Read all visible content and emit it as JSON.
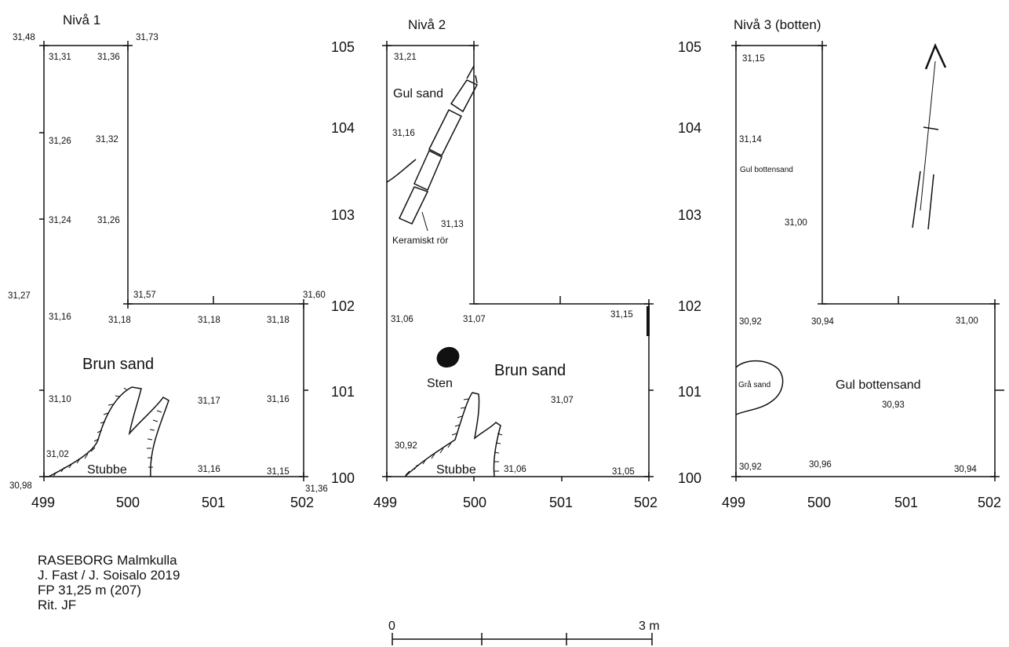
{
  "levels": [
    {
      "title": "Nivå 1",
      "x_ticks": [
        "499",
        "500",
        "501",
        "502"
      ],
      "y_ticks": [],
      "elevations": [
        "31,48",
        "31,31",
        "31,36",
        "31,73",
        "31,26",
        "31,32",
        "31,24",
        "31,26",
        "31,27",
        "31,57",
        "31,60",
        "31,16",
        "31,18",
        "31,18",
        "31,18",
        "31,10",
        "31,17",
        "31,16",
        "31,02",
        "30,98",
        "31,16",
        "31,15",
        "31,36"
      ],
      "labels": {
        "soil": "Brun sand",
        "stump": "Stubbe"
      }
    },
    {
      "title": "Nivå 2",
      "x_ticks": [
        "499",
        "500",
        "501",
        "502"
      ],
      "y_ticks": [
        "105",
        "104",
        "103",
        "102",
        "101",
        "100"
      ],
      "elevations": [
        "31,21",
        "31,16",
        "31,13",
        "31,06",
        "31,07",
        "31,15",
        "31,07",
        "30,92",
        "31,06",
        "31,05"
      ],
      "labels": {
        "yellow_sand": "Gul sand",
        "pipe": "Keramiskt rör",
        "stone": "Sten",
        "soil": "Brun sand",
        "stump": "Stubbe"
      }
    },
    {
      "title": "Nivå 3 (botten)",
      "x_ticks": [
        "499",
        "500",
        "501",
        "502"
      ],
      "y_ticks": [
        "105",
        "104",
        "103",
        "102",
        "101",
        "100"
      ],
      "elevations": [
        "31,15",
        "31,14",
        "31,00",
        "30,92",
        "30,94",
        "31,00",
        "30,93",
        "30,92",
        "30,96",
        "30,94"
      ],
      "labels": {
        "bottom_sand_small": "Gul bottensand",
        "grey_sand": "Grå sand",
        "bottom_sand": "Gul bottensand"
      }
    }
  ],
  "meta": {
    "site": "RASEBORG Malmkulla",
    "authors": "J. Fast / J. Soisalo 2019",
    "fp": "FP 31,25 m (207)",
    "drawn": "Rit. JF"
  },
  "scale": {
    "start": "0",
    "end": "3 m"
  }
}
